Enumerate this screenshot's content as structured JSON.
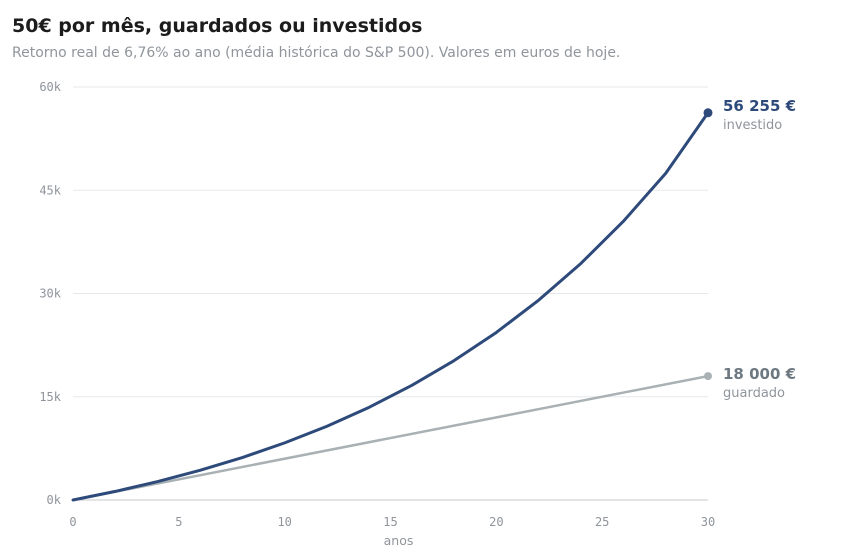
{
  "header": {
    "title": "50€ por mês, guardados ou investidos",
    "subtitle": "Retorno real de 6,76% ao ano (média histórica do S&P 500). Valores em euros de hoje."
  },
  "chart_data": {
    "type": "line",
    "xlabel": "anos",
    "ylabel": "",
    "xlim": [
      0,
      30
    ],
    "ylim": [
      0,
      60000
    ],
    "x_ticks": [
      "0",
      "5",
      "10",
      "15",
      "20",
      "25",
      "30"
    ],
    "y_ticks": [
      "0k",
      "15k",
      "30k",
      "45k",
      "60k"
    ],
    "grid": true,
    "series": [
      {
        "name": "investido",
        "color": "#2e4a7a",
        "end_label": "56 255 €",
        "x": [
          0,
          2,
          4,
          6,
          8,
          10,
          12,
          14,
          16,
          18,
          20,
          22,
          24,
          26,
          28,
          30
        ],
        "values": [
          0,
          1250,
          2680,
          4310,
          6170,
          8300,
          10720,
          13480,
          16640,
          20240,
          24340,
          29030,
          34380,
          40480,
          47450,
          56255
        ]
      },
      {
        "name": "guardado",
        "color": "#a9b1b5",
        "end_label": "18 000 €",
        "x": [
          0,
          30
        ],
        "values": [
          0,
          18000
        ]
      }
    ]
  }
}
